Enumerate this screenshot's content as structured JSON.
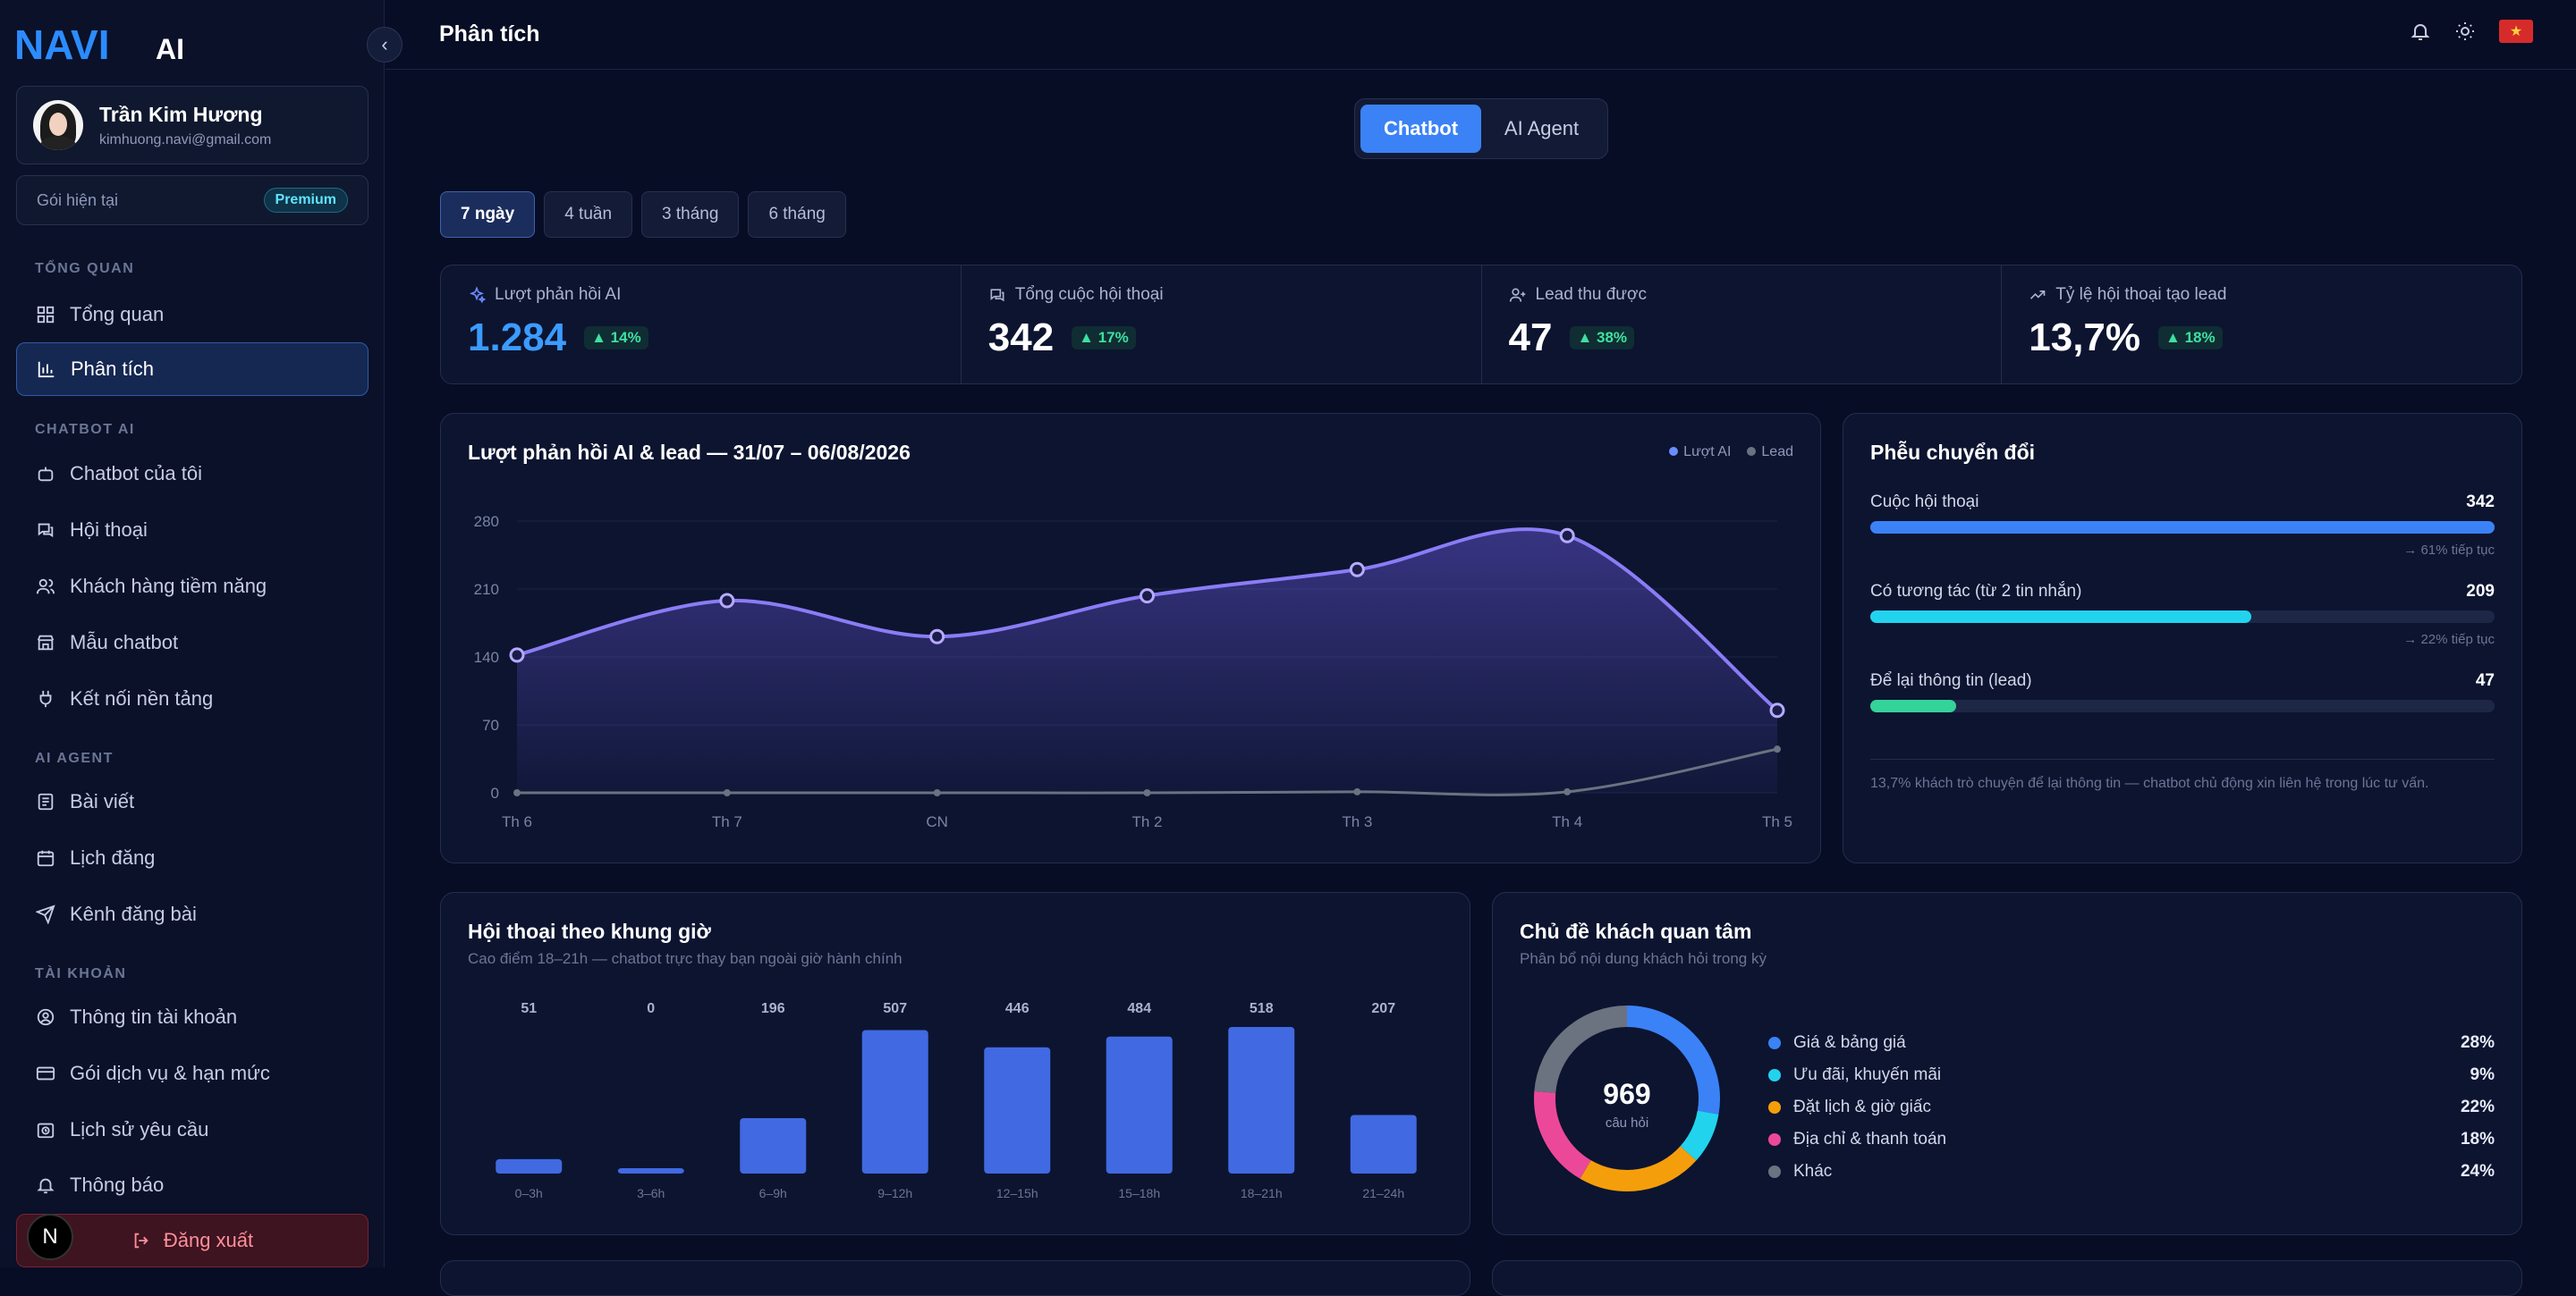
{
  "brand": {
    "logo_text": "NAVI",
    "logo_suffix": "AI"
  },
  "user": {
    "name": "Trần Kim Hương",
    "email": "kimhuong.navi@gmail.com"
  },
  "plan": {
    "label": "Gói hiện tại",
    "badge": "Premium"
  },
  "sidebar": {
    "sections": [
      "TỔNG QUAN",
      "CHATBOT AI",
      "AI AGENT",
      "TÀI KHOẢN"
    ],
    "items": [
      {
        "label": "Tổng quan",
        "icon": "grid-icon"
      },
      {
        "label": "Phân tích",
        "icon": "bar-chart-icon",
        "active": true
      },
      {
        "label": "Chatbot của tôi",
        "icon": "bot-icon"
      },
      {
        "label": "Hội thoại",
        "icon": "chat-icon"
      },
      {
        "label": "Khách hàng tiềm năng",
        "icon": "users-icon"
      },
      {
        "label": "Mẫu chatbot",
        "icon": "template-icon"
      },
      {
        "label": "Kết nối nền tảng",
        "icon": "plug-icon"
      },
      {
        "label": "Bài viết",
        "icon": "article-icon"
      },
      {
        "label": "Lịch đăng",
        "icon": "calendar-icon"
      },
      {
        "label": "Kênh đăng bài",
        "icon": "send-icon"
      },
      {
        "label": "Thông tin tài khoản",
        "icon": "user-circle-icon"
      },
      {
        "label": "Gói dịch vụ & hạn mức",
        "icon": "card-icon"
      },
      {
        "label": "Lịch sử yêu cầu",
        "icon": "history-icon"
      },
      {
        "label": "Thông báo",
        "icon": "bell-icon"
      }
    ],
    "logout": "Đăng xuất",
    "n_badge": "N"
  },
  "header": {
    "title": "Phân tích"
  },
  "mode_tabs": [
    {
      "label": "Chatbot",
      "active": true
    },
    {
      "label": "AI Agent",
      "active": false
    }
  ],
  "periods": [
    {
      "label": "7 ngày",
      "active": true
    },
    {
      "label": "4 tuần"
    },
    {
      "label": "3 tháng"
    },
    {
      "label": "6 tháng"
    }
  ],
  "kpis": [
    {
      "label": "Lượt phản hồi AI",
      "value": "1.284",
      "delta": "▲ 14%",
      "icon": "sparkle-icon"
    },
    {
      "label": "Tổng cuộc hội thoại",
      "value": "342",
      "delta": "▲ 17%",
      "icon": "chat-icon"
    },
    {
      "label": "Lead thu được",
      "value": "47",
      "delta": "▲ 38%",
      "icon": "user-plus-icon"
    },
    {
      "label": "Tỷ lệ hội thoại tạo lead",
      "value": "13,7%",
      "delta": "▲ 18%",
      "icon": "trend-icon"
    }
  ],
  "line_card": {
    "title": "Lượt phản hồi AI & lead — 31/07 – 06/08/2026",
    "legend": [
      "Lượt AI",
      "Lead"
    ]
  },
  "funnel": {
    "title": "Phễu chuyển đổi",
    "rows": [
      {
        "label": "Cuộc hội thoại",
        "value": "342",
        "fraction": 1.0,
        "color": "#3b82f6",
        "note": "→ 61% tiếp tục"
      },
      {
        "label": "Có tương tác (từ 2 tin nhắn)",
        "value": "209",
        "fraction": 0.611,
        "color": "#22d3ee",
        "note": "→ 22% tiếp tục"
      },
      {
        "label": "Để lại thông tin (lead)",
        "value": "47",
        "fraction": 0.137,
        "color": "#34d399",
        "note": ""
      }
    ],
    "footnote": "13,7% khách trò chuyện để lại thông tin — chatbot chủ động xin liên hệ trong lúc tư vấn."
  },
  "hours_card": {
    "title": "Hội thoại theo khung giờ",
    "subtitle": "Cao điểm 18–21h — chatbot trực thay bạn ngoài giờ hành chính"
  },
  "topics_card": {
    "title": "Chủ đề khách quan tâm",
    "subtitle": "Phân bổ nội dung khách hỏi trong kỳ",
    "total": "969",
    "total_label": "câu hỏi"
  },
  "chart_data": [
    {
      "type": "line",
      "title": "Lượt phản hồi AI & lead — 31/07 – 06/08/2026",
      "x": [
        "Th 6",
        "Th 7",
        "CN",
        "Th 2",
        "Th 3",
        "Th 4",
        "Th 5"
      ],
      "series": [
        {
          "name": "Lượt AI",
          "values": [
            142,
            198,
            161,
            203,
            230,
            265,
            85
          ],
          "color": "#8b7cf6"
        },
        {
          "name": "Lead",
          "values": [
            0,
            0,
            0,
            0,
            1,
            1,
            45
          ],
          "color": "#6b7280"
        }
      ],
      "ylim": [
        0,
        280
      ],
      "yticks": [
        0,
        70,
        140,
        210,
        280
      ],
      "grid": true,
      "legend": "top-right"
    },
    {
      "type": "bar",
      "title": "Hội thoại theo khung giờ",
      "categories": [
        "0–3h",
        "3–6h",
        "6–9h",
        "9–12h",
        "12–15h",
        "15–18h",
        "18–21h",
        "21–24h"
      ],
      "values": [
        51,
        0,
        196,
        507,
        446,
        484,
        518,
        207
      ],
      "color": "#4169e1"
    },
    {
      "type": "pie",
      "title": "Chủ đề khách quan tâm",
      "categories": [
        "Giá & bảng giá",
        "Ưu đãi, khuyến mãi",
        "Đặt lịch & giờ giấc",
        "Địa chỉ & thanh toán",
        "Khác"
      ],
      "values": [
        28,
        9,
        22,
        18,
        24
      ],
      "labels": [
        "28%",
        "9%",
        "22%",
        "18%",
        "24%"
      ],
      "colors": [
        "#3b82f6",
        "#22d3ee",
        "#f59e0b",
        "#ec4899",
        "#6b7280"
      ],
      "center_value": "969",
      "center_label": "câu hỏi"
    }
  ]
}
